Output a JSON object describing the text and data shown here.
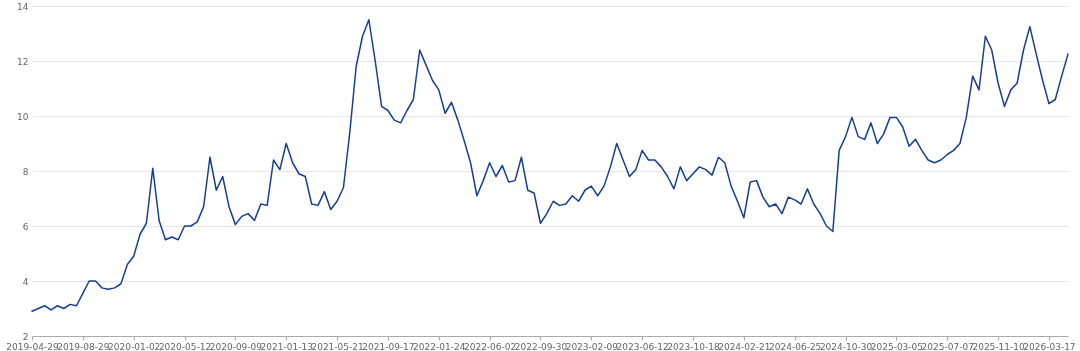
{
  "chart_data": {
    "type": "line",
    "categories": [
      "2019-04-29",
      null,
      null,
      null,
      null,
      null,
      null,
      null,
      "2019-08-29",
      null,
      null,
      null,
      null,
      null,
      null,
      null,
      "2020-01-02",
      null,
      null,
      null,
      null,
      null,
      null,
      null,
      "2020-05-12",
      null,
      null,
      null,
      null,
      null,
      null,
      null,
      "2020-09-09",
      null,
      null,
      null,
      null,
      null,
      null,
      null,
      "2021-01-13",
      null,
      null,
      null,
      null,
      null,
      null,
      null,
      "2021-05-21",
      null,
      null,
      null,
      null,
      null,
      null,
      null,
      "2021-09-17",
      null,
      null,
      null,
      null,
      null,
      null,
      null,
      "2022-01-24",
      null,
      null,
      null,
      null,
      null,
      null,
      null,
      "2022-06-02",
      null,
      null,
      null,
      null,
      null,
      null,
      null,
      "2022-09-30",
      null,
      null,
      null,
      null,
      null,
      null,
      null,
      "2023-02-09",
      null,
      null,
      null,
      null,
      null,
      null,
      null,
      "2023-06-12",
      null,
      null,
      null,
      null,
      null,
      null,
      null,
      "2023-10-18",
      null,
      null,
      null,
      null,
      null,
      null,
      null,
      "2024-02-21",
      null,
      null,
      null,
      null,
      null,
      null,
      null,
      "2024-06-25",
      null,
      null,
      null,
      null,
      null,
      null,
      null,
      "2024-10-30",
      null,
      null,
      null,
      null,
      null,
      null,
      null,
      "2025-03-05",
      null,
      null,
      null,
      null,
      null,
      null,
      null,
      "2025-07-07",
      null,
      null,
      null,
      null,
      null,
      null,
      null,
      "2025-11-10",
      null,
      null,
      null,
      null,
      null,
      null,
      null,
      "2026-03-17",
      null,
      null,
      null
    ],
    "values": [
      2.9,
      3.0,
      3.1,
      2.95,
      3.1,
      3.0,
      3.15,
      3.1,
      3.55,
      4.0,
      4.0,
      3.75,
      3.7,
      3.75,
      3.9,
      4.6,
      4.9,
      5.7,
      6.1,
      8.1,
      6.2,
      5.5,
      5.6,
      5.5,
      6.0,
      6.0,
      6.15,
      6.7,
      8.5,
      7.3,
      7.8,
      6.7,
      6.05,
      6.35,
      6.45,
      6.2,
      6.8,
      6.75,
      8.4,
      8.05,
      9.0,
      8.3,
      7.9,
      7.8,
      6.8,
      6.75,
      7.25,
      6.6,
      6.9,
      7.4,
      9.4,
      11.8,
      12.9,
      13.5,
      12.0,
      10.35,
      10.2,
      9.85,
      9.75,
      10.2,
      10.6,
      12.4,
      11.85,
      11.3,
      10.95,
      10.1,
      10.5,
      9.85,
      9.1,
      8.3,
      7.1,
      7.65,
      8.3,
      7.8,
      8.2,
      7.6,
      7.65,
      8.5,
      7.3,
      7.2,
      6.1,
      6.45,
      6.9,
      6.75,
      6.8,
      7.1,
      6.9,
      7.3,
      7.45,
      7.1,
      7.45,
      8.15,
      9.0,
      8.4,
      7.8,
      8.05,
      8.75,
      8.4,
      8.4,
      8.15,
      7.8,
      7.35,
      8.15,
      7.65,
      7.9,
      8.15,
      8.05,
      7.85,
      8.5,
      8.3,
      7.45,
      6.9,
      6.3,
      7.6,
      7.65,
      7.05,
      6.7,
      6.8,
      6.45,
      7.05,
      6.95,
      6.8,
      7.35,
      6.8,
      6.45,
      6.0,
      5.8,
      8.75,
      9.25,
      9.95,
      9.25,
      9.15,
      9.75,
      9.0,
      9.35,
      9.95,
      9.95,
      9.6,
      8.9,
      9.15,
      8.75,
      8.4,
      8.3,
      8.4,
      8.6,
      8.75,
      9.0,
      9.95,
      11.45,
      10.95,
      12.9,
      12.4,
      11.2,
      10.35,
      10.95,
      11.2,
      12.4,
      13.25,
      12.25,
      11.3,
      10.45,
      10.6,
      11.45,
      12.25
    ],
    "color": "#173f91",
    "ylim": [
      2,
      14
    ],
    "yticks": [
      2,
      4,
      6,
      8,
      10,
      12,
      14
    ],
    "grid": "y"
  }
}
